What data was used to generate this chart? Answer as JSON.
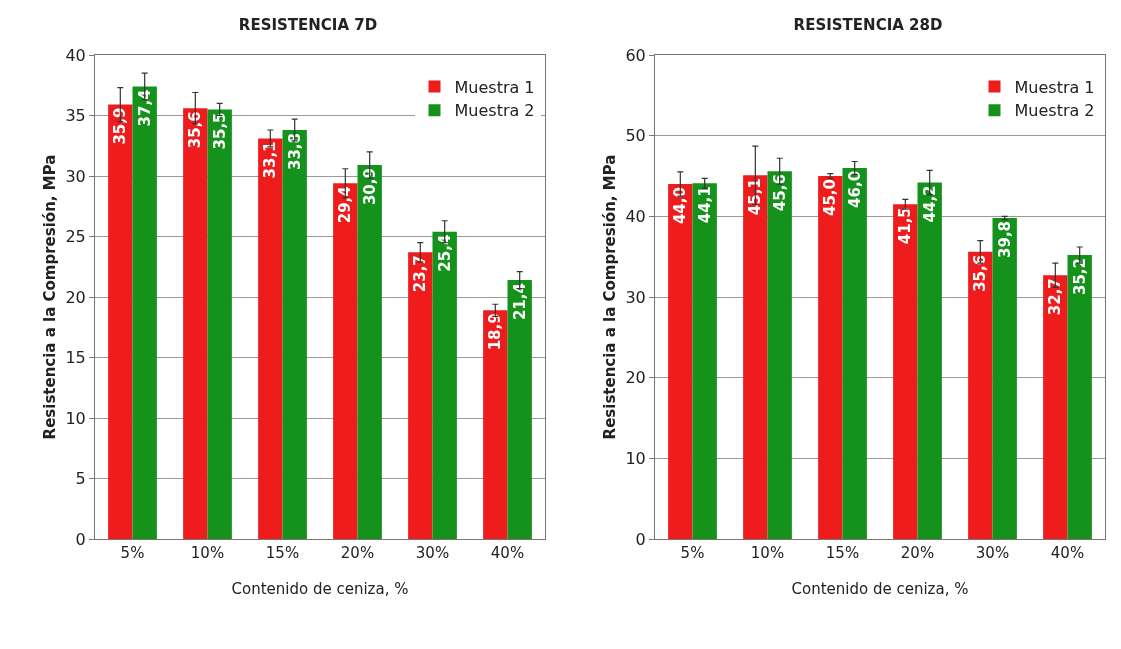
{
  "chart_data": [
    {
      "type": "bar",
      "title": "RESISTENCIA 7D",
      "xlabel": "Contenido de ceniza, %",
      "ylabel": "Resistencia a la Compresión, MPa",
      "categories": [
        "5%",
        "10%",
        "15%",
        "20%",
        "30%",
        "40%"
      ],
      "series": [
        {
          "name": "Muestra 1",
          "color": "#ee1c1c",
          "values": [
            35.9,
            35.6,
            33.1,
            29.4,
            23.7,
            18.9
          ],
          "errors": [
            1.4,
            1.3,
            0.7,
            1.2,
            0.8,
            0.5
          ],
          "value_labels": [
            "35,9",
            "35,6",
            "33,1",
            "29,4",
            "23,7",
            "18,9"
          ]
        },
        {
          "name": "Muestra 2",
          "color": "#15921c",
          "values": [
            37.4,
            35.5,
            33.8,
            30.9,
            25.4,
            21.4
          ],
          "errors": [
            1.1,
            0.5,
            0.9,
            1.1,
            0.9,
            0.7
          ],
          "value_labels": [
            "37,4",
            "35,5",
            "33,8",
            "30,9",
            "25,4",
            "21,4"
          ]
        }
      ],
      "ylim": [
        0,
        40
      ],
      "yticks": [
        0,
        5,
        10,
        15,
        20,
        25,
        30,
        35,
        40
      ],
      "grid": "y",
      "legend": "top right"
    },
    {
      "type": "bar",
      "title": "RESISTENCIA 28D",
      "xlabel": "Contenido de ceniza, %",
      "ylabel": "Resistencia a la Compresión, MPa",
      "categories": [
        "5%",
        "10%",
        "15%",
        "20%",
        "30%",
        "40%"
      ],
      "series": [
        {
          "name": "Muestra 1",
          "color": "#ee1c1c",
          "values": [
            44.0,
            45.1,
            45.0,
            41.5,
            35.6,
            32.7
          ],
          "errors": [
            1.5,
            3.6,
            0.3,
            0.6,
            1.4,
            1.5
          ],
          "value_labels": [
            "44,0",
            "45,1",
            "45,0",
            "41,5",
            "35,6",
            "32,7"
          ]
        },
        {
          "name": "Muestra 2",
          "color": "#15921c",
          "values": [
            44.1,
            45.6,
            46.0,
            44.2,
            39.8,
            35.2
          ],
          "errors": [
            0.6,
            1.6,
            0.8,
            1.5,
            0.2,
            1.0
          ],
          "value_labels": [
            "44,1",
            "45,6",
            "46,0",
            "44,2",
            "39,8",
            "35,2"
          ]
        }
      ],
      "ylim": [
        0,
        60
      ],
      "yticks": [
        0,
        10,
        20,
        30,
        40,
        50,
        60
      ],
      "grid": "y",
      "legend": "top right"
    }
  ]
}
